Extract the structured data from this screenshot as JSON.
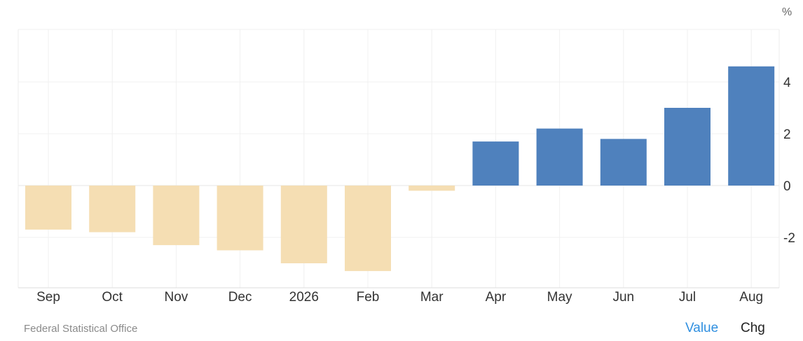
{
  "chart_data": {
    "type": "bar",
    "unit": "%",
    "categories": [
      "Sep",
      "Oct",
      "Nov",
      "Dec",
      "2026",
      "Feb",
      "Mar",
      "Apr",
      "May",
      "Jun",
      "Jul",
      "Aug"
    ],
    "values": [
      -1.7,
      -1.8,
      -2.3,
      -2.5,
      -3.0,
      -3.3,
      -0.2,
      1.7,
      2.2,
      1.8,
      3.0,
      4.6
    ],
    "ylim": [
      -4,
      6
    ],
    "yticks": [
      4,
      2,
      0,
      -2
    ],
    "grid": true,
    "colors": {
      "positive": "#4f81bd",
      "negative": "#f5deb3"
    }
  },
  "footer": {
    "source": "Federal Statistical Office",
    "toggles": {
      "value_label": "Value",
      "chg_label": "Chg"
    }
  },
  "colors": {
    "active_toggle": "#2f8fe0"
  }
}
